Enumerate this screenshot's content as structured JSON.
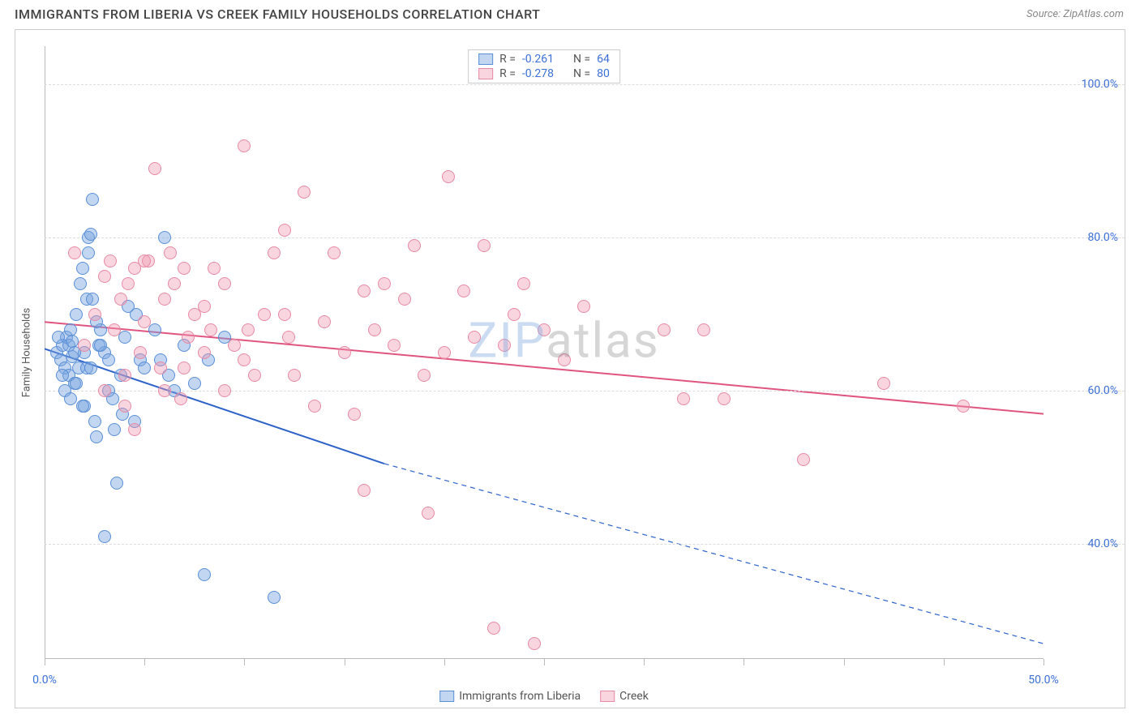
{
  "title": "IMMIGRANTS FROM LIBERIA VS CREEK FAMILY HOUSEHOLDS CORRELATION CHART",
  "source": "Source: ZipAtlas.com",
  "watermark": {
    "part1": "ZIP",
    "part2": "atlas"
  },
  "chart": {
    "type": "scatter",
    "background_color": "#ffffff",
    "grid_color": "#dddddd",
    "axis_color": "#bbbbbb",
    "ylabel": "Family Households",
    "ylabel_fontsize": 13,
    "tick_label_color": "#3b6fd6",
    "tick_fontsize": 14,
    "xlim": [
      0,
      50
    ],
    "ylim": [
      25,
      105
    ],
    "x_ticks": [
      0,
      5,
      10,
      15,
      20,
      25,
      30,
      35,
      40,
      45,
      50
    ],
    "x_tick_labels": {
      "0": "0.0%",
      "50": "50.0%"
    },
    "y_ticks": [
      40,
      60,
      80,
      100
    ],
    "y_tick_labels": {
      "40": "40.0%",
      "60": "60.0%",
      "80": "80.0%",
      "100": "100.0%"
    },
    "marker_radius": 8,
    "series": [
      {
        "key": "liberia",
        "label": "Immigrants from Liberia",
        "fill": "rgba(120, 165, 225, 0.45)",
        "stroke": "#5a8fd6",
        "line_color": "#2e62c9",
        "line_width": 2,
        "R": "-0.261",
        "N": "64",
        "trend": {
          "x1": 0,
          "y1": 65.5,
          "x2_solid": 17,
          "y2_solid": 50.5,
          "x2": 50,
          "y2": 27
        },
        "points": [
          [
            0.6,
            65
          ],
          [
            0.8,
            64
          ],
          [
            0.9,
            66
          ],
          [
            1.0,
            63
          ],
          [
            1.1,
            67
          ],
          [
            1.2,
            62
          ],
          [
            1.3,
            68
          ],
          [
            1.4,
            64.5
          ],
          [
            1.5,
            61
          ],
          [
            1.6,
            70
          ],
          [
            1.8,
            74
          ],
          [
            1.9,
            76
          ],
          [
            2.0,
            58
          ],
          [
            2.1,
            72
          ],
          [
            2.2,
            80
          ],
          [
            2.3,
            80.5
          ],
          [
            2.4,
            85
          ],
          [
            2.5,
            56
          ],
          [
            2.6,
            54
          ],
          [
            2.8,
            68
          ],
          [
            3.0,
            65
          ],
          [
            3.2,
            60
          ],
          [
            3.4,
            59
          ],
          [
            3.5,
            55
          ],
          [
            3.6,
            48
          ],
          [
            3.8,
            62
          ],
          [
            4.0,
            67
          ],
          [
            4.2,
            71
          ],
          [
            4.5,
            56
          ],
          [
            4.8,
            64
          ],
          [
            5.0,
            63
          ],
          [
            5.5,
            68
          ],
          [
            6.0,
            80
          ],
          [
            6.2,
            62
          ],
          [
            6.5,
            60
          ],
          [
            7.0,
            66
          ],
          [
            7.5,
            61
          ],
          [
            8.0,
            36
          ],
          [
            8.2,
            64
          ],
          [
            9.0,
            67
          ],
          [
            11.5,
            33
          ],
          [
            2.7,
            66
          ],
          [
            1.0,
            60
          ],
          [
            1.2,
            66
          ],
          [
            1.7,
            63
          ],
          [
            3.0,
            41
          ],
          [
            3.2,
            64
          ],
          [
            1.4,
            66.5
          ],
          [
            2.0,
            65
          ],
          [
            2.1,
            63
          ],
          [
            2.2,
            78
          ],
          [
            2.4,
            72
          ],
          [
            1.9,
            58
          ],
          [
            1.3,
            59
          ],
          [
            0.9,
            62
          ],
          [
            0.7,
            67
          ],
          [
            2.6,
            69
          ],
          [
            2.8,
            66
          ],
          [
            1.5,
            65
          ],
          [
            1.6,
            61
          ],
          [
            4.6,
            70
          ],
          [
            5.8,
            64
          ],
          [
            3.9,
            57
          ],
          [
            2.3,
            63
          ]
        ]
      },
      {
        "key": "creek",
        "label": "Creek",
        "fill": "rgba(240, 150, 175, 0.40)",
        "stroke": "#e68aa5",
        "line_color": "#e05580",
        "line_width": 2,
        "R": "-0.278",
        "N": "80",
        "trend": {
          "x1": 0,
          "y1": 69,
          "x2_solid": 50,
          "y2_solid": 57,
          "x2": 50,
          "y2": 57
        },
        "points": [
          [
            1.5,
            78
          ],
          [
            2.0,
            66
          ],
          [
            2.5,
            70
          ],
          [
            3.0,
            75
          ],
          [
            3.3,
            77
          ],
          [
            3.5,
            68
          ],
          [
            3.8,
            72
          ],
          [
            4.0,
            62
          ],
          [
            4.2,
            74
          ],
          [
            4.5,
            76
          ],
          [
            4.8,
            65
          ],
          [
            5.0,
            69
          ],
          [
            5.2,
            77
          ],
          [
            5.5,
            89
          ],
          [
            5.8,
            63
          ],
          [
            6.0,
            72
          ],
          [
            6.3,
            78
          ],
          [
            6.5,
            74
          ],
          [
            6.8,
            59
          ],
          [
            7.0,
            76
          ],
          [
            7.2,
            67
          ],
          [
            7.5,
            70
          ],
          [
            8.0,
            65
          ],
          [
            8.3,
            68
          ],
          [
            8.5,
            76
          ],
          [
            9.0,
            74
          ],
          [
            9.5,
            66
          ],
          [
            10.0,
            92
          ],
          [
            10.2,
            68
          ],
          [
            10.5,
            62
          ],
          [
            11.0,
            70
          ],
          [
            11.5,
            78
          ],
          [
            12.0,
            81
          ],
          [
            12.2,
            67
          ],
          [
            12.5,
            62
          ],
          [
            13.0,
            86
          ],
          [
            13.5,
            58
          ],
          [
            14.0,
            69
          ],
          [
            14.5,
            78
          ],
          [
            15.0,
            65
          ],
          [
            15.5,
            57
          ],
          [
            16.0,
            73
          ],
          [
            16.5,
            68
          ],
          [
            17.0,
            74
          ],
          [
            17.5,
            66
          ],
          [
            18.0,
            72
          ],
          [
            18.5,
            79
          ],
          [
            19.0,
            62
          ],
          [
            19.2,
            44
          ],
          [
            20.0,
            65
          ],
          [
            20.2,
            88
          ],
          [
            21.0,
            73
          ],
          [
            21.5,
            67
          ],
          [
            22.0,
            79
          ],
          [
            22.5,
            29
          ],
          [
            23.0,
            66
          ],
          [
            23.5,
            70
          ],
          [
            24.0,
            74
          ],
          [
            24.5,
            27
          ],
          [
            25.0,
            68
          ],
          [
            26.0,
            64
          ],
          [
            27.0,
            71
          ],
          [
            31.0,
            68
          ],
          [
            32.0,
            59
          ],
          [
            33.0,
            68
          ],
          [
            34.0,
            59
          ],
          [
            38.0,
            51
          ],
          [
            42.0,
            61
          ],
          [
            46.0,
            58
          ],
          [
            3.0,
            60
          ],
          [
            4.0,
            58
          ],
          [
            4.5,
            55
          ],
          [
            5.0,
            77
          ],
          [
            6.0,
            60
          ],
          [
            7.0,
            63
          ],
          [
            8.0,
            71
          ],
          [
            9.0,
            60
          ],
          [
            10.0,
            64
          ],
          [
            16.0,
            47
          ],
          [
            12.0,
            70
          ]
        ]
      }
    ]
  }
}
